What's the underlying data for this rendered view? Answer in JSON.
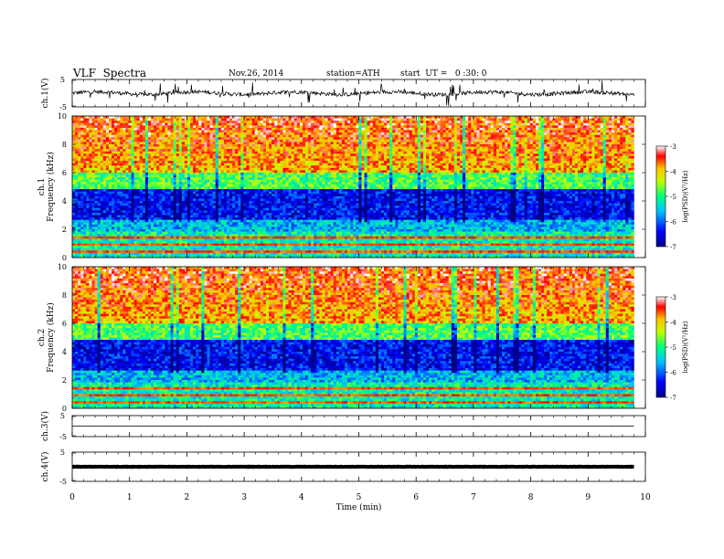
{
  "header": {
    "title": "VLF  Spectra",
    "date": "Nov.26, 2014",
    "station": "station=ATH",
    "start": "start  UT =   0 :30: 0"
  },
  "chart_data": {
    "type": "heatmap",
    "xlabel": "Time  (min)",
    "xlim": [
      0,
      10
    ],
    "x_ticks": [
      "0",
      "1",
      "2",
      "3",
      "4",
      "5",
      "6",
      "7",
      "8",
      "9",
      "10"
    ],
    "data_end_min": 9.8,
    "waveform_panels": [
      {
        "ylabel": "ch.1(V)",
        "ylim": [
          -5,
          5
        ],
        "y_ticks": [
          "5",
          "-5"
        ],
        "trace": "noisy ~ 0 with spikes"
      },
      {
        "ylabel": "ch.3(V)",
        "ylim": [
          -5,
          5
        ],
        "y_ticks": [
          "5",
          "-5"
        ],
        "trace": "flat ~ 0"
      },
      {
        "ylabel": "ch.4(V)",
        "ylim": [
          -5,
          5
        ],
        "y_ticks": [
          "5",
          "-5"
        ],
        "trace": "flat ~ 0 (thick)"
      }
    ],
    "spectrogram_panels": [
      {
        "channel_label": "ch.1",
        "ylabel": "Frequency (kHz)",
        "ylim": [
          0,
          10
        ],
        "y_ticks": [
          "0",
          "2",
          "4",
          "6",
          "8",
          "10"
        ],
        "colorbar": {
          "label": "log(PSD)(V²/Hz)",
          "range": [
            -7,
            -3
          ],
          "ticks": [
            "-3",
            "-4",
            "-5",
            "-6",
            "-7"
          ]
        }
      },
      {
        "channel_label": "ch.2",
        "ylabel": "Frequency (kHz)",
        "ylim": [
          0,
          10
        ],
        "y_ticks": [
          "0",
          "2",
          "4",
          "6",
          "8",
          "10"
        ],
        "colorbar": {
          "label": "log(PSD)(V²/Hz)",
          "range": [
            -7,
            -3
          ],
          "ticks": [
            "-3",
            "-4",
            "-5",
            "-6",
            "-7"
          ]
        }
      }
    ],
    "colors": {
      "low": "#000080",
      "mid": "#00ff80",
      "high": "#ff0000"
    }
  }
}
